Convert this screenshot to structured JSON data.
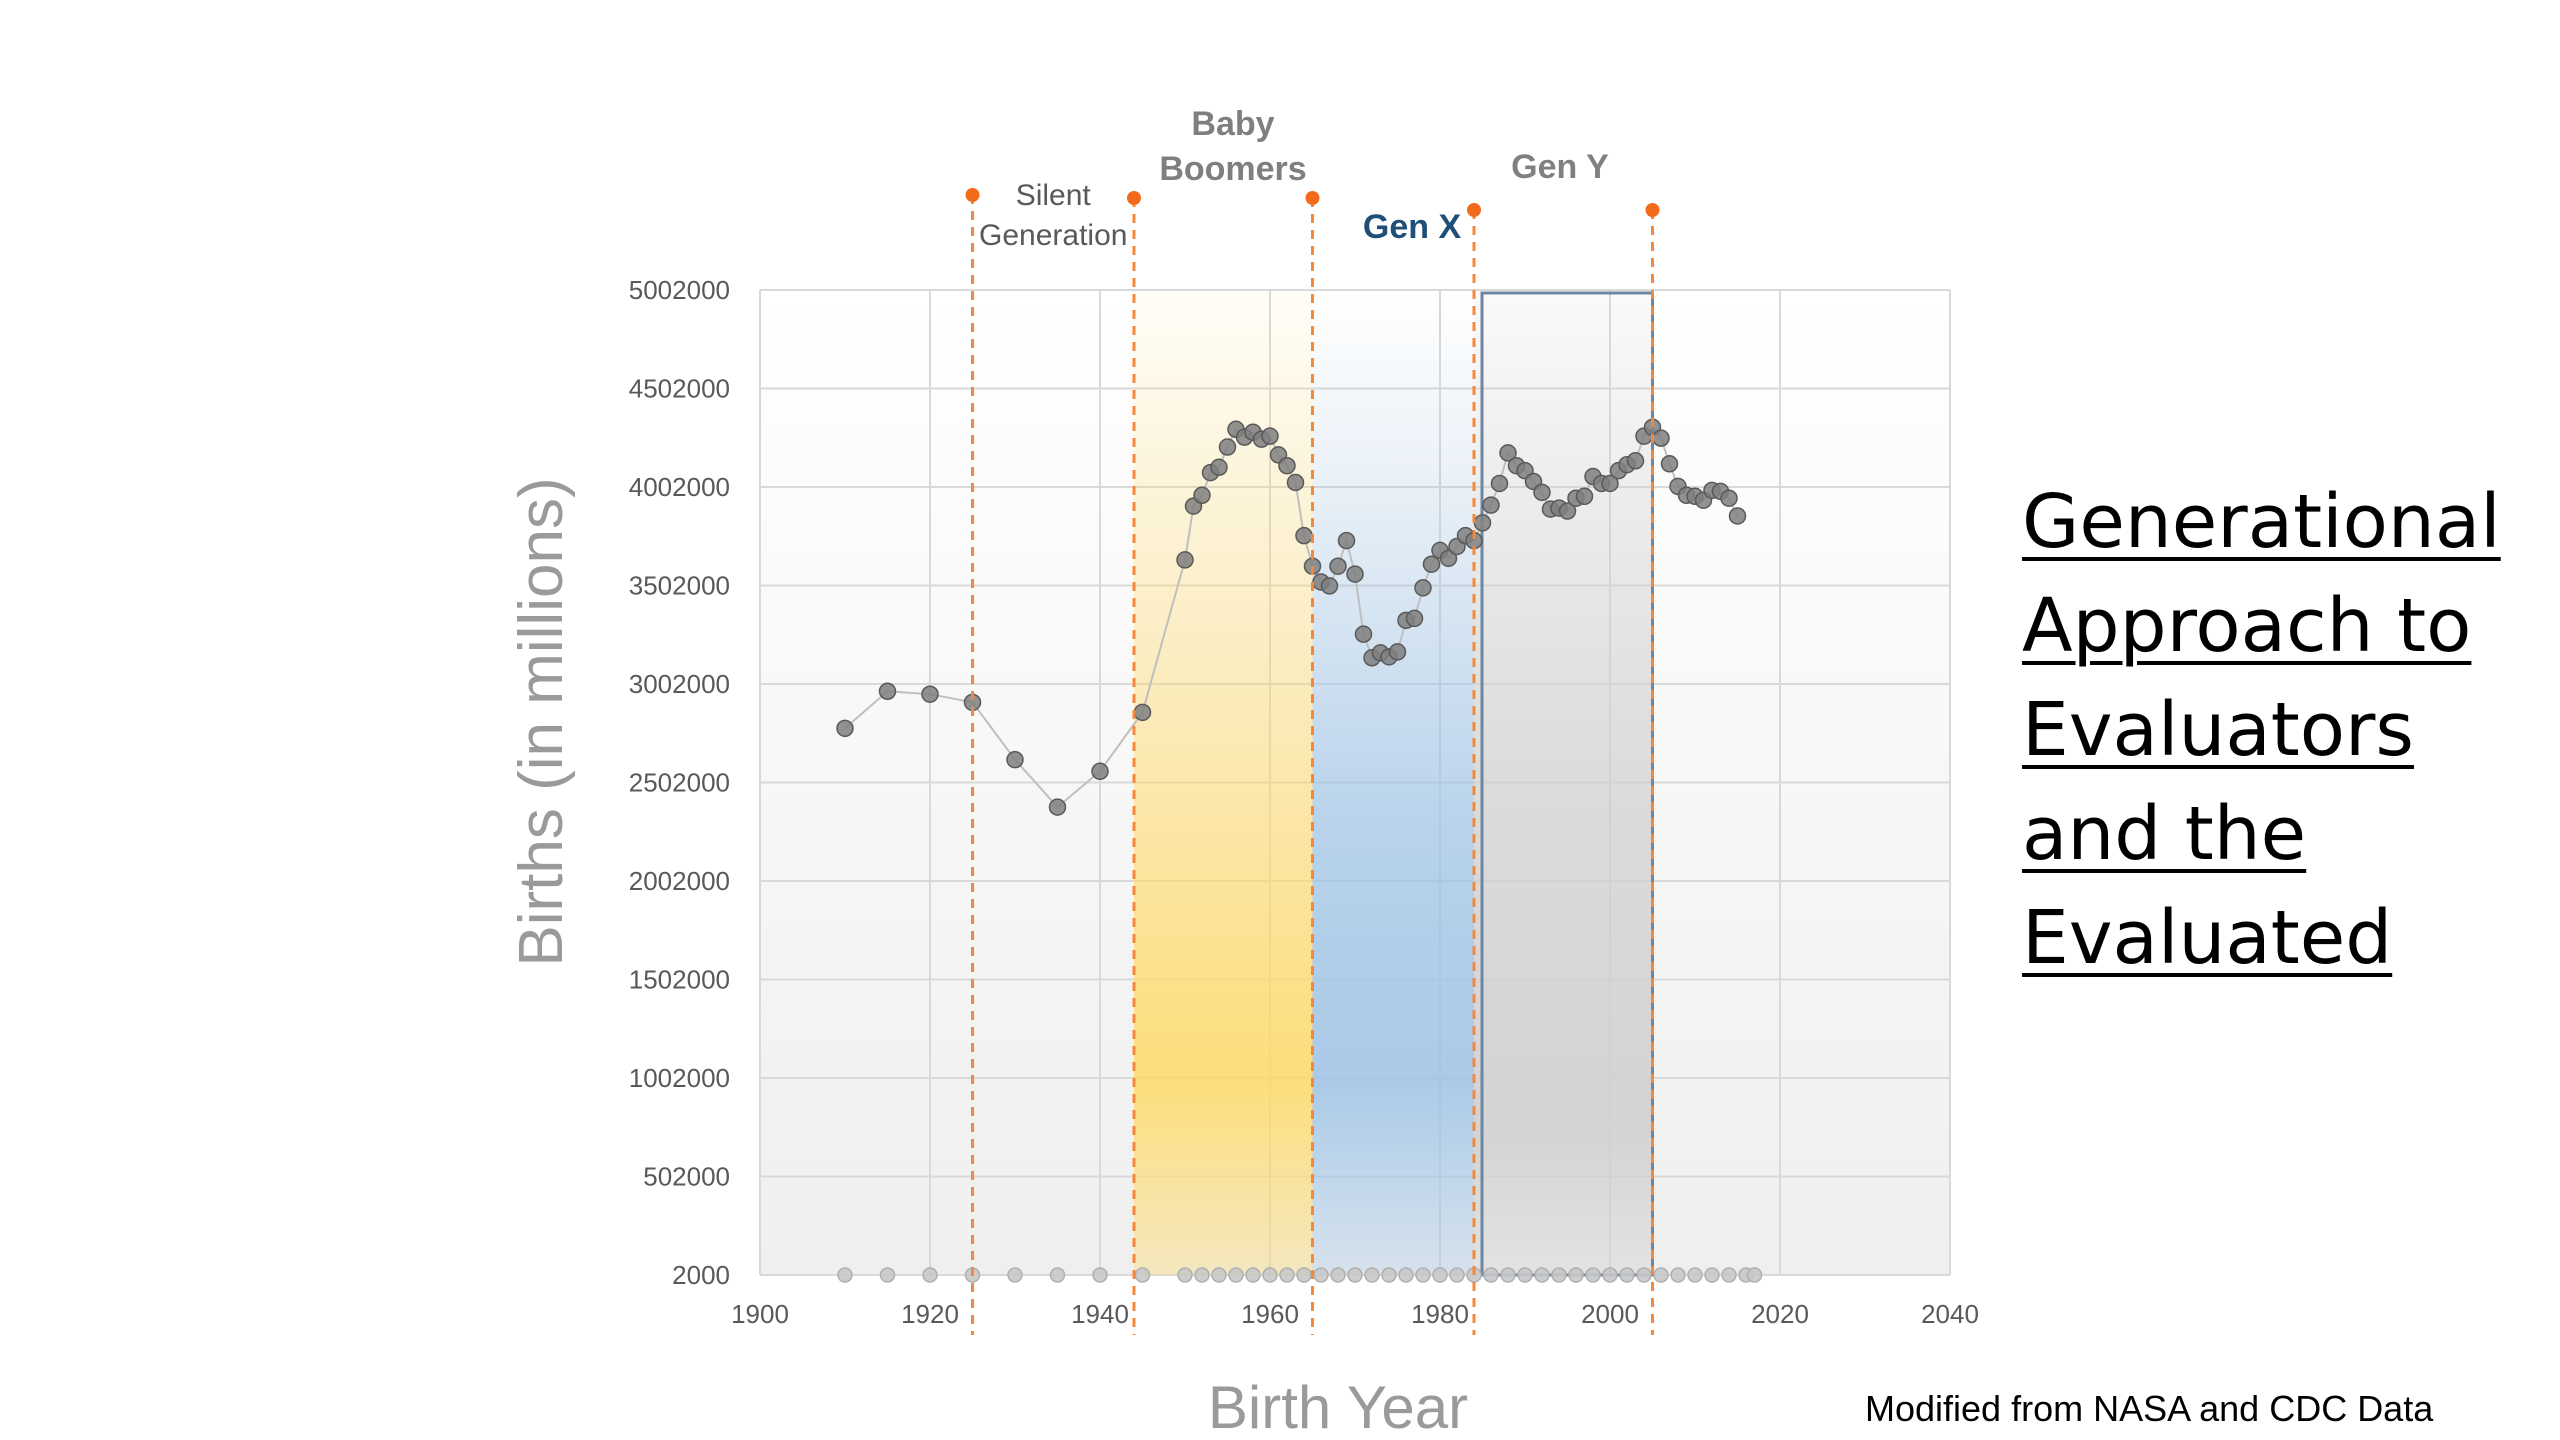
{
  "chart_data": {
    "type": "scatter",
    "xlabel": "Birth Year",
    "ylabel": "Births (in millions)",
    "xlim": [
      1900,
      2040
    ],
    "ylim": [
      2000,
      5002000
    ],
    "x_ticks": [
      "1900",
      "1920",
      "1940",
      "1960",
      "1980",
      "2000",
      "2020",
      "2040"
    ],
    "y_ticks": [
      "2000",
      "502000",
      "1002000",
      "1502000",
      "2002000",
      "2502000",
      "3002000",
      "3502000",
      "4002000",
      "4502000",
      "5002000"
    ],
    "grid": true,
    "series": [
      {
        "color": "#7f7f7f",
        "connected": true,
        "points": [
          [
            1910,
            2777000
          ],
          [
            1915,
            2965000
          ],
          [
            1920,
            2950000
          ],
          [
            1925,
            2909000
          ],
          [
            1930,
            2618000
          ],
          [
            1935,
            2377000
          ],
          [
            1940,
            2559000
          ],
          [
            1945,
            2858000
          ],
          [
            1950,
            3632000
          ],
          [
            1951,
            3905000
          ],
          [
            1952,
            3960000
          ],
          [
            1953,
            4075000
          ],
          [
            1954,
            4102000
          ],
          [
            1955,
            4205000
          ],
          [
            1956,
            4295000
          ],
          [
            1957,
            4255000
          ],
          [
            1958,
            4280000
          ],
          [
            1959,
            4245000
          ],
          [
            1960,
            4260000
          ],
          [
            1961,
            4165000
          ],
          [
            1962,
            4110000
          ],
          [
            1963,
            4025000
          ],
          [
            1964,
            3755000
          ],
          [
            1965,
            3600000
          ],
          [
            1966,
            3520000
          ],
          [
            1967,
            3500000
          ],
          [
            1968,
            3600000
          ],
          [
            1969,
            3730000
          ],
          [
            1970,
            3560000
          ],
          [
            1971,
            3255000
          ],
          [
            1972,
            3135000
          ],
          [
            1973,
            3160000
          ],
          [
            1974,
            3140000
          ],
          [
            1975,
            3165000
          ],
          [
            1976,
            3325000
          ],
          [
            1977,
            3335000
          ],
          [
            1978,
            3490000
          ],
          [
            1979,
            3610000
          ],
          [
            1980,
            3680000
          ],
          [
            1981,
            3640000
          ],
          [
            1982,
            3700000
          ],
          [
            1983,
            3755000
          ],
          [
            1984,
            3730000
          ],
          [
            1985,
            3820000
          ],
          [
            1986,
            3910000
          ],
          [
            1987,
            4020000
          ],
          [
            1988,
            4175000
          ],
          [
            1989,
            4110000
          ],
          [
            1990,
            4085000
          ],
          [
            1991,
            4030000
          ],
          [
            1992,
            3975000
          ],
          [
            1993,
            3890000
          ],
          [
            1994,
            3895000
          ],
          [
            1995,
            3880000
          ],
          [
            1996,
            3945000
          ],
          [
            1997,
            3955000
          ],
          [
            1998,
            4055000
          ],
          [
            1999,
            4020000
          ],
          [
            2000,
            4020000
          ],
          [
            2001,
            4085000
          ],
          [
            2002,
            4115000
          ],
          [
            2003,
            4135000
          ],
          [
            2004,
            4260000
          ],
          [
            2005,
            4305000
          ],
          [
            2006,
            4250000
          ],
          [
            2007,
            4120000
          ],
          [
            2008,
            4005000
          ],
          [
            2009,
            3960000
          ],
          [
            2010,
            3955000
          ],
          [
            2011,
            3935000
          ],
          [
            2012,
            3985000
          ],
          [
            2013,
            3980000
          ],
          [
            2014,
            3945000
          ],
          [
            2015,
            3855000
          ]
        ]
      },
      {
        "color": "#c8c8c8",
        "connected": false,
        "points": [
          [
            1910,
            2000
          ],
          [
            1915,
            2000
          ],
          [
            1920,
            2000
          ],
          [
            1925,
            2000
          ],
          [
            1930,
            2000
          ],
          [
            1935,
            2000
          ],
          [
            1940,
            2000
          ],
          [
            1945,
            2000
          ],
          [
            1950,
            2000
          ],
          [
            1952,
            2000
          ],
          [
            1954,
            2000
          ],
          [
            1956,
            2000
          ],
          [
            1958,
            2000
          ],
          [
            1960,
            2000
          ],
          [
            1962,
            2000
          ],
          [
            1964,
            2000
          ],
          [
            1966,
            2000
          ],
          [
            1968,
            2000
          ],
          [
            1970,
            2000
          ],
          [
            1972,
            2000
          ],
          [
            1974,
            2000
          ],
          [
            1976,
            2000
          ],
          [
            1978,
            2000
          ],
          [
            1980,
            2000
          ],
          [
            1982,
            2000
          ],
          [
            1984,
            2000
          ],
          [
            1986,
            2000
          ],
          [
            1988,
            2000
          ],
          [
            1990,
            2000
          ],
          [
            1992,
            2000
          ],
          [
            1994,
            2000
          ],
          [
            1996,
            2000
          ],
          [
            1998,
            2000
          ],
          [
            2000,
            2000
          ],
          [
            2002,
            2000
          ],
          [
            2004,
            2000
          ],
          [
            2006,
            2000
          ],
          [
            2008,
            2000
          ],
          [
            2010,
            2000
          ],
          [
            2012,
            2000
          ],
          [
            2014,
            2000
          ],
          [
            2016,
            2000
          ],
          [
            2017,
            2000
          ]
        ]
      }
    ],
    "generation_boundaries": [
      1925,
      1944,
      1965,
      1984,
      2005
    ],
    "generations": [
      {
        "label": "Silent\nGeneration",
        "start": 1925,
        "end": 1944,
        "color": "#595959",
        "bold": false,
        "fill": "none"
      },
      {
        "label": "Baby\nBoomers",
        "start": 1944,
        "end": 1965,
        "color": "#7f7f7f",
        "bold": true,
        "fill": "#ffd966"
      },
      {
        "label": "Gen X",
        "start": 1965,
        "end": 1984,
        "color": "#1f4e79",
        "bold": true,
        "fill": "#9dc3e6"
      },
      {
        "label": "Gen Y",
        "start": 1984,
        "end": 2005,
        "color": "#808080",
        "bold": true,
        "fill": "#d0d0d0"
      }
    ],
    "boundary_color": "#f4893b",
    "gen_y_outline_color": "#6d87a3"
  },
  "side_title": {
    "lines": [
      "Generational",
      "Approach to",
      "Evaluators",
      "and the",
      "Evaluated"
    ]
  },
  "source_note": "Modified from NASA and CDC Data"
}
